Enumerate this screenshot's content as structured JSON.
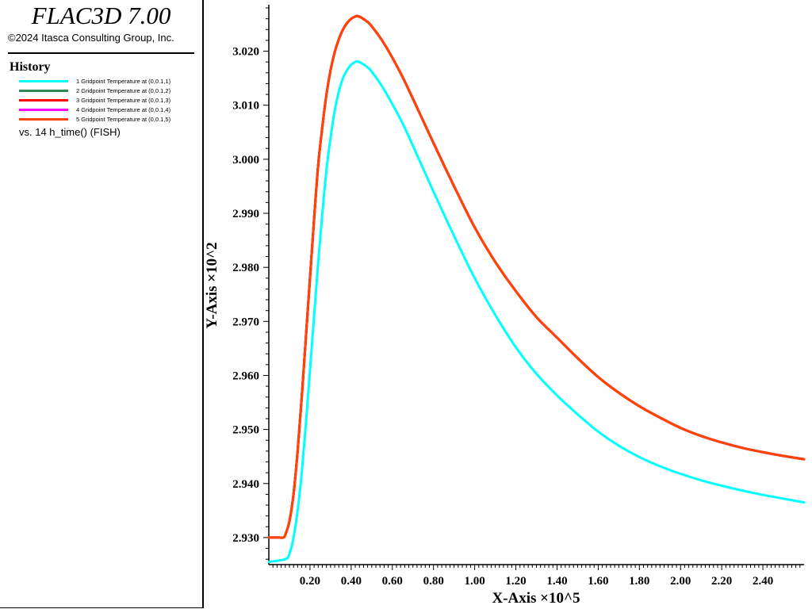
{
  "app": {
    "title": "FLAC3D 7.00",
    "copyright": "©2024 Itasca Consulting Group, Inc."
  },
  "legend": {
    "heading": "History",
    "x_series_label": "vs. 14 h_time() (FISH)",
    "items": [
      {
        "label": "1 Gridpoint Temperature at (0,0.1,1)",
        "color": "#00ffff"
      },
      {
        "label": "2 Gridpoint Temperature at (0,0.1,2)",
        "color": "#2e8b57"
      },
      {
        "label": "3 Gridpoint Temperature at (0,0.1,3)",
        "color": "#ff0000"
      },
      {
        "label": "4 Gridpoint Temperature at (0,0.1,4)",
        "color": "#ff00ff"
      },
      {
        "label": "5 Gridpoint Temperature at (0,0.1,5)",
        "color": "#ff4500"
      }
    ]
  },
  "chart_data": {
    "type": "line",
    "xlabel": "X-Axis ×10^5",
    "ylabel": "Y-Axis ×10^2",
    "xlim": [
      0.0,
      2.6
    ],
    "ylim": [
      2.925,
      3.028
    ],
    "x_ticks": [
      "0.20",
      "0.40",
      "0.60",
      "0.80",
      "1.00",
      "1.20",
      "1.40",
      "1.60",
      "1.80",
      "2.00",
      "2.20",
      "2.40"
    ],
    "y_ticks": [
      "2.930",
      "2.940",
      "2.950",
      "2.960",
      "2.970",
      "2.980",
      "2.990",
      "3.000",
      "3.010",
      "3.020"
    ],
    "grid": false,
    "series": [
      {
        "name": "1 Gridpoint Temperature at (0,0.1,1)",
        "color": "#00ffff",
        "x": [
          0.0,
          0.08,
          0.1,
          0.12,
          0.14,
          0.16,
          0.18,
          0.2,
          0.22,
          0.24,
          0.26,
          0.28,
          0.3,
          0.32,
          0.34,
          0.36,
          0.38,
          0.4,
          0.42,
          0.43,
          0.45,
          0.48,
          0.5,
          0.55,
          0.6,
          0.65,
          0.7,
          0.8,
          0.9,
          1.0,
          1.1,
          1.2,
          1.3,
          1.4,
          1.5,
          1.6,
          1.7,
          1.8,
          1.9,
          2.0,
          2.1,
          2.2,
          2.3,
          2.4,
          2.5,
          2.6
        ],
        "y": [
          2.9255,
          2.926,
          2.927,
          2.93,
          2.935,
          2.942,
          2.951,
          2.961,
          2.971,
          2.981,
          2.99,
          2.998,
          3.004,
          3.009,
          3.0125,
          3.015,
          3.0165,
          3.0175,
          3.018,
          3.0181,
          3.0178,
          3.017,
          3.0162,
          3.0135,
          3.0102,
          3.0066,
          3.0025,
          2.994,
          2.9858,
          2.978,
          2.9712,
          2.9652,
          2.9603,
          2.9563,
          2.9528,
          2.9496,
          2.947,
          2.9449,
          2.9432,
          2.9418,
          2.9406,
          2.9396,
          2.9387,
          2.9379,
          2.9372,
          2.9365
        ]
      },
      {
        "name": "2 Gridpoint Temperature at (0,0.1,2)",
        "color": "#2e8b57",
        "x": [
          0.0,
          0.05,
          0.07,
          0.08,
          0.1,
          0.12,
          0.14,
          0.16,
          0.18,
          0.2,
          0.22,
          0.24,
          0.26,
          0.28,
          0.3,
          0.32,
          0.34,
          0.36,
          0.38,
          0.4,
          0.42,
          0.43,
          0.45,
          0.48,
          0.5,
          0.55,
          0.6,
          0.65,
          0.7,
          0.8,
          0.9,
          1.0,
          1.1,
          1.2,
          1.3,
          1.4,
          1.5,
          1.6,
          1.7,
          1.8,
          1.9,
          2.0,
          2.1,
          2.2,
          2.3,
          2.4,
          2.5,
          2.6
        ],
        "y": [
          2.93,
          2.93,
          2.93,
          2.9305,
          2.933,
          2.938,
          2.946,
          2.956,
          2.967,
          2.978,
          2.989,
          2.999,
          3.006,
          3.012,
          3.0165,
          3.0198,
          3.0222,
          3.024,
          3.0252,
          3.026,
          3.0264,
          3.0265,
          3.0262,
          3.0254,
          3.0246,
          3.022,
          3.0188,
          3.0152,
          3.0112,
          3.003,
          2.995,
          2.9874,
          2.981,
          2.9756,
          2.9708,
          2.967,
          2.9632,
          2.9597,
          2.9568,
          2.9543,
          2.9522,
          2.9503,
          2.9488,
          2.9476,
          2.9466,
          2.9458,
          2.9451,
          2.9445
        ]
      },
      {
        "name": "3 Gridpoint Temperature at (0,0.1,3)",
        "color": "#ff0000",
        "x": [
          0.0,
          0.05,
          0.07,
          0.08,
          0.1,
          0.12,
          0.14,
          0.16,
          0.18,
          0.2,
          0.22,
          0.24,
          0.26,
          0.28,
          0.3,
          0.32,
          0.34,
          0.36,
          0.38,
          0.4,
          0.42,
          0.43,
          0.45,
          0.48,
          0.5,
          0.55,
          0.6,
          0.65,
          0.7,
          0.8,
          0.9,
          1.0,
          1.1,
          1.2,
          1.3,
          1.4,
          1.5,
          1.6,
          1.7,
          1.8,
          1.9,
          2.0,
          2.1,
          2.2,
          2.3,
          2.4,
          2.5,
          2.6
        ],
        "y": [
          2.93,
          2.93,
          2.93,
          2.9305,
          2.933,
          2.938,
          2.946,
          2.956,
          2.967,
          2.978,
          2.989,
          2.999,
          3.006,
          3.012,
          3.0165,
          3.0198,
          3.0222,
          3.024,
          3.0252,
          3.026,
          3.0264,
          3.0265,
          3.0262,
          3.0254,
          3.0246,
          3.022,
          3.0188,
          3.0152,
          3.0112,
          3.003,
          2.995,
          2.9874,
          2.981,
          2.9756,
          2.9708,
          2.967,
          2.9632,
          2.9597,
          2.9568,
          2.9543,
          2.9522,
          2.9503,
          2.9488,
          2.9476,
          2.9466,
          2.9458,
          2.9451,
          2.9445
        ]
      },
      {
        "name": "4 Gridpoint Temperature at (0,0.1,4)",
        "color": "#ff00ff",
        "x": [
          0.0,
          0.05,
          0.07,
          0.08,
          0.1,
          0.12,
          0.14,
          0.16,
          0.18,
          0.2,
          0.22,
          0.24,
          0.26,
          0.28,
          0.3,
          0.32,
          0.34,
          0.36,
          0.38,
          0.4,
          0.42,
          0.43,
          0.45,
          0.48,
          0.5,
          0.55,
          0.6,
          0.65,
          0.7,
          0.8,
          0.9,
          1.0,
          1.1,
          1.2,
          1.3,
          1.4,
          1.5,
          1.6,
          1.7,
          1.8,
          1.9,
          2.0,
          2.1,
          2.2,
          2.3,
          2.4,
          2.5,
          2.6
        ],
        "y": [
          2.93,
          2.93,
          2.93,
          2.9305,
          2.933,
          2.938,
          2.946,
          2.956,
          2.967,
          2.978,
          2.989,
          2.999,
          3.006,
          3.012,
          3.0165,
          3.0198,
          3.0222,
          3.024,
          3.0252,
          3.026,
          3.0264,
          3.0265,
          3.0262,
          3.0254,
          3.0246,
          3.022,
          3.0188,
          3.0152,
          3.0112,
          3.003,
          2.995,
          2.9874,
          2.981,
          2.9756,
          2.9708,
          2.967,
          2.9632,
          2.9597,
          2.9568,
          2.9543,
          2.9522,
          2.9503,
          2.9488,
          2.9476,
          2.9466,
          2.9458,
          2.9451,
          2.9445
        ]
      },
      {
        "name": "5 Gridpoint Temperature at (0,0.1,5)",
        "color": "#ff4500",
        "x": [
          0.0,
          0.05,
          0.07,
          0.08,
          0.1,
          0.12,
          0.14,
          0.16,
          0.18,
          0.2,
          0.22,
          0.24,
          0.26,
          0.28,
          0.3,
          0.32,
          0.34,
          0.36,
          0.38,
          0.4,
          0.42,
          0.43,
          0.45,
          0.48,
          0.5,
          0.55,
          0.6,
          0.65,
          0.7,
          0.8,
          0.9,
          1.0,
          1.1,
          1.2,
          1.3,
          1.4,
          1.5,
          1.6,
          1.7,
          1.8,
          1.9,
          2.0,
          2.1,
          2.2,
          2.3,
          2.4,
          2.5,
          2.6
        ],
        "y": [
          2.93,
          2.93,
          2.93,
          2.9305,
          2.933,
          2.938,
          2.946,
          2.956,
          2.967,
          2.978,
          2.989,
          2.999,
          3.006,
          3.012,
          3.0165,
          3.0198,
          3.0222,
          3.024,
          3.0252,
          3.026,
          3.0264,
          3.0265,
          3.0262,
          3.0254,
          3.0246,
          3.022,
          3.0188,
          3.0152,
          3.0112,
          3.003,
          2.995,
          2.9874,
          2.981,
          2.9756,
          2.9708,
          2.967,
          2.9632,
          2.9597,
          2.9568,
          2.9543,
          2.9522,
          2.9503,
          2.9488,
          2.9476,
          2.9466,
          2.9458,
          2.9451,
          2.9445
        ]
      }
    ]
  }
}
